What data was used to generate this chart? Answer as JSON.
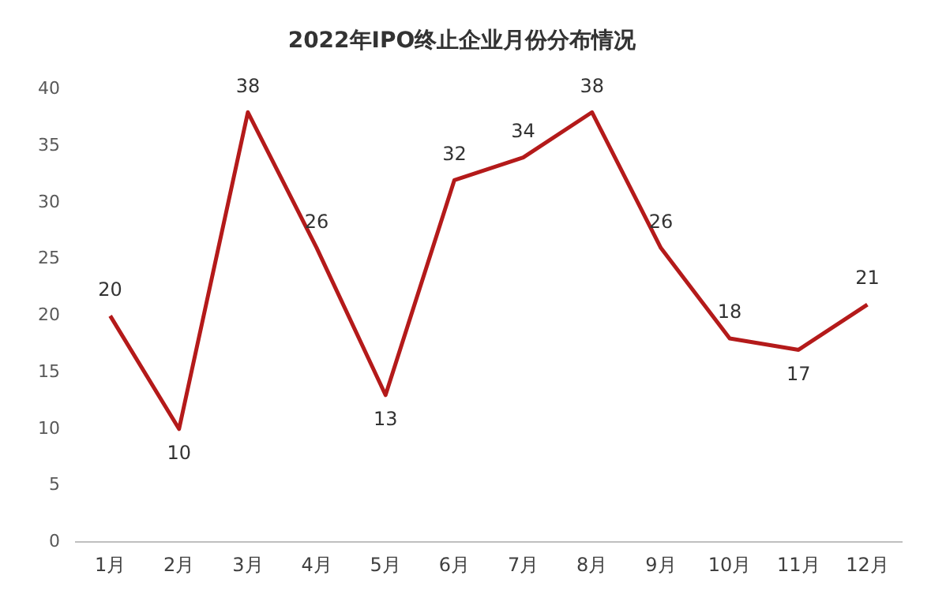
{
  "chart_data": {
    "type": "line",
    "title": "2022年IPO终止企业月份分布情况",
    "categories": [
      "1月",
      "2月",
      "3月",
      "4月",
      "5月",
      "6月",
      "7月",
      "8月",
      "9月",
      "10月",
      "11月",
      "12月"
    ],
    "series": [
      {
        "color": "#b41a1a",
        "values": [
          20,
          10,
          38,
          26,
          13,
          32,
          34,
          38,
          26,
          18,
          17,
          21
        ]
      }
    ],
    "ylim": [
      0,
      40
    ],
    "yticks": [
      0,
      5,
      10,
      15,
      20,
      25,
      30,
      35,
      40
    ],
    "grid": false,
    "legend": false,
    "data_labels": true,
    "marker": "none",
    "line_style": "solid"
  }
}
